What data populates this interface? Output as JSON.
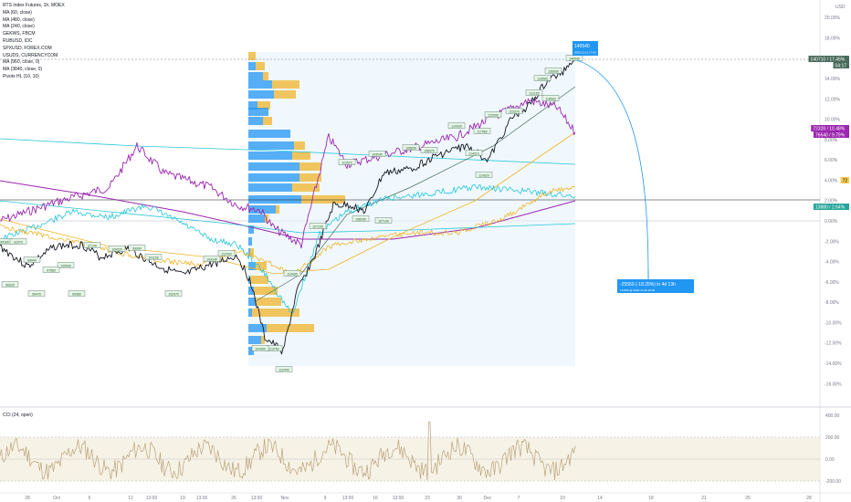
{
  "chart_data": {
    "type": "line",
    "title": "RTS Index Futures, 1h, MOEX",
    "legend_items": [
      "MA (60, close)",
      "MA (480, close)",
      "MA (240, close)",
      "GEKWS, FBCM",
      "RUBUSD, IDC",
      "SPXUSD, FOREX.COM",
      "USUDS, CURRENCYCOM",
      "MA (960, close, 0)",
      "MA (3840, close, 0)",
      "Pivots HL (10, 10)"
    ],
    "price_axis": [
      "20.00%",
      "18.00%",
      "16.00%",
      "14.00%",
      "12.00%",
      "10.00%",
      "8.00%",
      "6.00%",
      "4.00%",
      "2.00%",
      "0.00%",
      "-2.00%",
      "-4.00%",
      "-6.00%",
      "-8.00%",
      "-10.00%",
      "-12.00%",
      "-14.00%",
      "-16.00%"
    ],
    "price_axis_top": "USD",
    "y_range_percent": [
      -17.5,
      21
    ],
    "time_axis": [
      "28",
      "Oct",
      "6",
      "12",
      "13:00",
      "19",
      "13:00",
      "26",
      "13:00",
      "Nov",
      "9",
      "13:00",
      "16",
      "13:00",
      "23",
      "30",
      "Dec",
      "7",
      "10",
      "14",
      "18",
      "21",
      "25",
      "28"
    ],
    "oscillator": {
      "title": "CCI (24, open)",
      "axis": [
        "400.00",
        "200.00",
        "0.00",
        "-200.00"
      ],
      "band": [
        -200,
        200
      ]
    },
    "last_price_labels": [
      {
        "text": "140710 / 17.45%",
        "color": "#131722"
      },
      {
        "text": "04:17",
        "color": "#4a6b5c"
      },
      {
        "text": "72328 / 10.48%",
        "color": "#9c27b0"
      },
      {
        "text": "76640 / 9.79%",
        "color": "#9c27b0"
      },
      {
        "text": "72",
        "color": "#f7c948"
      },
      {
        "text": "13880 / 2.64%",
        "color": "#26a69a"
      }
    ],
    "measure_top": {
      "value": "140540",
      "sub": "2020-12-11 17:00"
    },
    "measure_target": {
      "value": "-25550 (-18.25%) in 4d 13h",
      "sub": "114490 @ 2020-12-16 18:00"
    },
    "pivot_labels": [
      "140540",
      "136050",
      "133560",
      "131150",
      "123370",
      "122590",
      "118590",
      "117560",
      "114310",
      "110930",
      "108970",
      "106830",
      "103540",
      "112570",
      "108290",
      "107100",
      "110430",
      "113760",
      "112440",
      "104360",
      "103240",
      "102970",
      "101190",
      "99990",
      "100920",
      "97140",
      "99360",
      "105960",
      "97560",
      "99470",
      "96320",
      "95180",
      "92370",
      "84040",
      "112430",
      "107190",
      "110620"
    ],
    "colors": {
      "price": "#131722",
      "purple": "#9c27b0",
      "teal": "#26c6da",
      "gold": "#f0b429",
      "olive": "#4a6b5c",
      "measure": "#2196f3",
      "vp_up": "#2196f3",
      "vp_down": "#f0b429"
    }
  }
}
